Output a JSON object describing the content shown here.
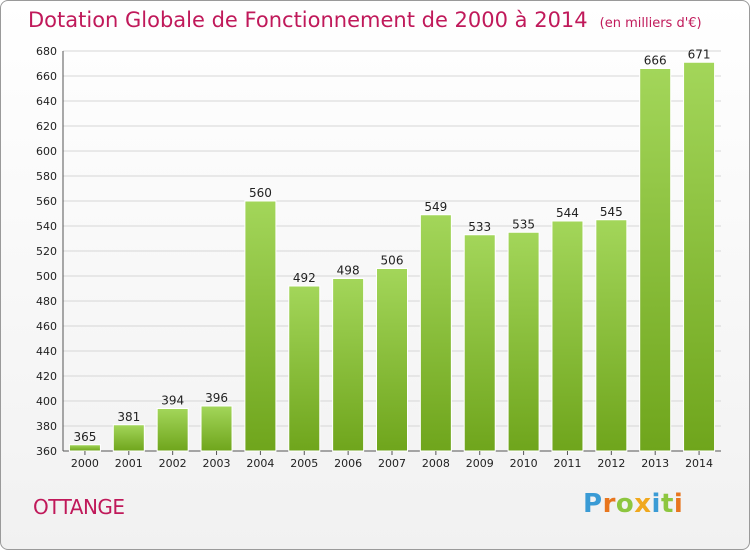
{
  "header": {
    "title": "Dotation Globale de Fonctionnement de 2000 à 2014",
    "unit": "(en milliers d'€)"
  },
  "footer": {
    "commune": "OTTANGE",
    "brand": [
      "P",
      "r",
      "o",
      "x",
      "i",
      "t",
      "i"
    ],
    "brand_colors": [
      "#3a9bd5",
      "#e8761e",
      "#8dc63f",
      "#f0a81d",
      "#3a9bd5",
      "#8dc63f",
      "#e8761e"
    ]
  },
  "colors": {
    "title": "#c0195a",
    "bar_light": "#a3d65a",
    "bar_dark": "#6fa51c",
    "grid": "#d6d6d6"
  },
  "chart_data": {
    "type": "bar",
    "categories": [
      "2000",
      "2001",
      "2002",
      "2003",
      "2004",
      "2005",
      "2006",
      "2007",
      "2008",
      "2009",
      "2010",
      "2011",
      "2012",
      "2013",
      "2014"
    ],
    "values": [
      365,
      381,
      394,
      396,
      560,
      492,
      498,
      506,
      549,
      533,
      535,
      544,
      545,
      666,
      671
    ],
    "ylim": [
      360,
      680
    ],
    "yticks": [
      360,
      380,
      400,
      420,
      440,
      460,
      480,
      500,
      520,
      540,
      560,
      580,
      600,
      620,
      640,
      660,
      680
    ],
    "grid": "horizontal",
    "data_labels": true
  }
}
